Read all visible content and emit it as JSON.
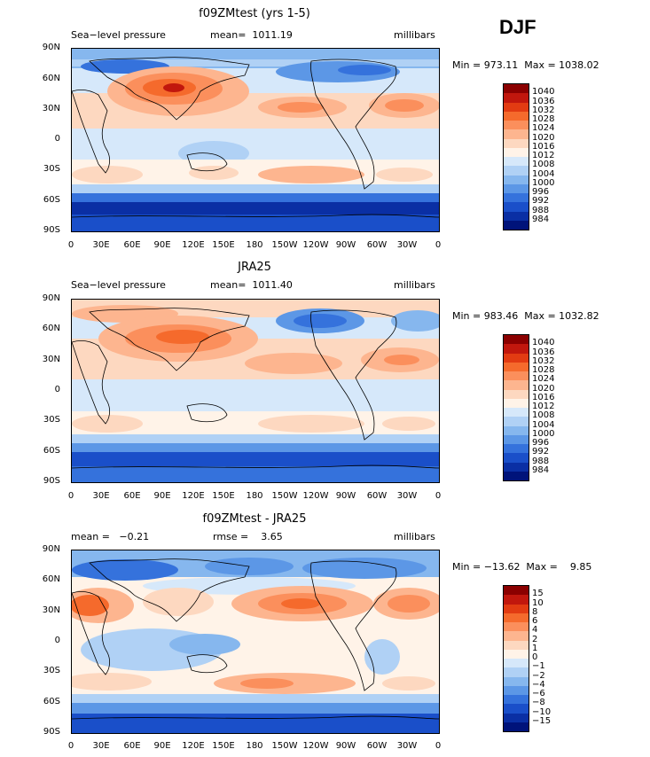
{
  "season": "DJF",
  "panels": [
    {
      "title": "f09ZMtest (yrs 1-5)",
      "left_label": "Sea−level pressure",
      "center_label": "mean=  1011.19",
      "units": "millibars",
      "minmax": "Min = 973.11  Max = 1038.02",
      "colorbar": {
        "colors": [
          "#8b0000",
          "#c1170d",
          "#e23b12",
          "#f56a2c",
          "#fb8f5c",
          "#fdb58f",
          "#fdd8c0",
          "#fff3e8",
          "#d6e8fa",
          "#b0d1f5",
          "#86b7ee",
          "#5c97e6",
          "#3572dc",
          "#1a4fc9",
          "#0a2fa4",
          "#00137a"
        ],
        "labels": [
          "1040",
          "1036",
          "1032",
          "1028",
          "1024",
          "1020",
          "1016",
          "1012",
          "1008",
          "1004",
          "1000",
          "996",
          "992",
          "988",
          "984"
        ]
      }
    },
    {
      "title": "JRA25",
      "left_label": "Sea−level pressure",
      "center_label": "mean=  1011.40",
      "units": "millibars",
      "minmax": "Min = 983.46  Max = 1032.82",
      "colorbar": {
        "colors": [
          "#8b0000",
          "#c1170d",
          "#e23b12",
          "#f56a2c",
          "#fb8f5c",
          "#fdb58f",
          "#fdd8c0",
          "#fff3e8",
          "#d6e8fa",
          "#b0d1f5",
          "#86b7ee",
          "#5c97e6",
          "#3572dc",
          "#1a4fc9",
          "#0a2fa4",
          "#00137a"
        ],
        "labels": [
          "1040",
          "1036",
          "1032",
          "1028",
          "1024",
          "1020",
          "1016",
          "1012",
          "1008",
          "1004",
          "1000",
          "996",
          "992",
          "988",
          "984"
        ]
      }
    },
    {
      "title": "f09ZMtest - JRA25",
      "left_label": "mean =   −0.21",
      "center_label": "rmse =    3.65",
      "units": "millibars",
      "minmax": "Min = −13.62  Max =    9.85",
      "colorbar": {
        "colors": [
          "#8b0000",
          "#c1170d",
          "#e23b12",
          "#f56a2c",
          "#fb8f5c",
          "#fdb58f",
          "#fdd8c0",
          "#fff3e8",
          "#d6e8fa",
          "#b0d1f5",
          "#86b7ee",
          "#5c97e6",
          "#3572dc",
          "#1a4fc9",
          "#0a2fa4",
          "#00137a"
        ],
        "labels": [
          "15",
          "10",
          "8",
          "6",
          "4",
          "2",
          "1",
          "0",
          "−1",
          "−2",
          "−4",
          "−6",
          "−8",
          "−10",
          "−15"
        ]
      }
    }
  ],
  "lat_labels": [
    "90N",
    "60N",
    "30N",
    "0",
    "30S",
    "60S",
    "90S"
  ],
  "lon_labels": [
    "0",
    "30E",
    "60E",
    "90E",
    "120E",
    "150E",
    "180",
    "150W",
    "120W",
    "90W",
    "60W",
    "30W",
    "0"
  ]
}
